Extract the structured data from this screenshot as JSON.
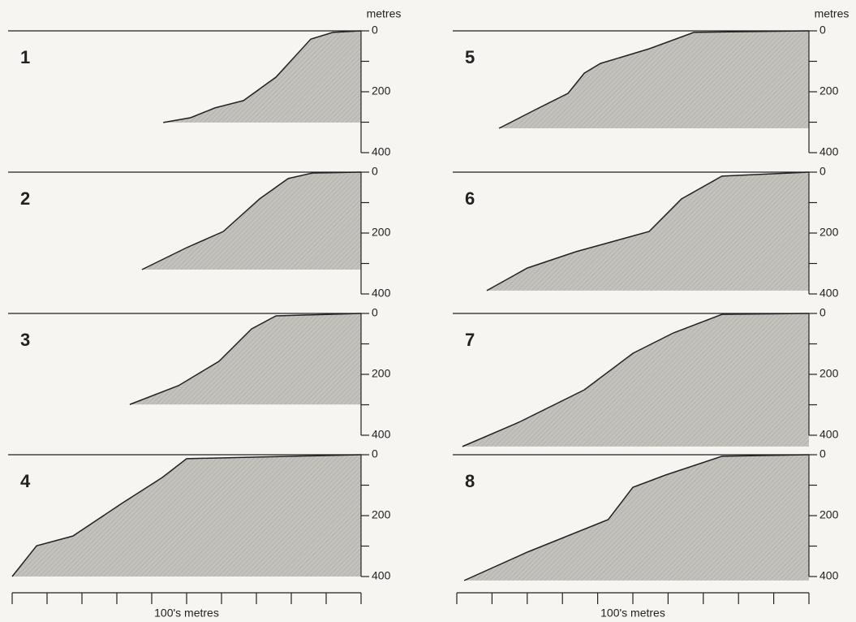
{
  "chart_data": [
    {
      "type": "area",
      "title": "1",
      "ylabel": "metres",
      "x": [
        4.33,
        5.12,
        5.81,
        6.63,
        7.56,
        8.56,
        9.19,
        10
      ],
      "values": [
        301,
        285,
        253,
        229,
        152,
        27,
        5,
        0
      ],
      "xlim": [
        0,
        10
      ],
      "ylim": [
        0,
        400
      ],
      "yticks": [
        0,
        200,
        400
      ],
      "yminorticks": [
        100,
        300
      ],
      "color": "#c4c2bc"
    },
    {
      "type": "area",
      "title": "2",
      "x": [
        3.72,
        5.0,
        6.05,
        7.09,
        7.91,
        8.6,
        10
      ],
      "values": [
        320,
        248,
        195,
        88,
        21,
        3,
        0
      ],
      "xlim": [
        0,
        10
      ],
      "ylim": [
        0,
        400
      ],
      "yticks": [
        0,
        200,
        400
      ],
      "yminorticks": [
        100,
        300
      ],
      "color": "#c4c2bc"
    },
    {
      "type": "area",
      "title": "3",
      "x": [
        3.37,
        4.77,
        5.93,
        6.86,
        7.56,
        10
      ],
      "values": [
        299,
        237,
        157,
        51,
        8,
        0
      ],
      "xlim": [
        0,
        10
      ],
      "ylim": [
        0,
        400
      ],
      "yticks": [
        0,
        200,
        400
      ],
      "yminorticks": [
        100,
        300
      ],
      "color": "#c4c2bc"
    },
    {
      "type": "area",
      "title": "4",
      "xlabel": "100's metres",
      "xticks": [
        0,
        1,
        2,
        3,
        4,
        5,
        6,
        7,
        8,
        9,
        10
      ],
      "x": [
        0,
        0.7,
        1.74,
        3.14,
        4.3,
        5.0,
        10
      ],
      "values": [
        400,
        299,
        267,
        160,
        75,
        13,
        0
      ],
      "xlim": [
        0,
        10
      ],
      "ylim": [
        0,
        400
      ],
      "yticks": [
        0,
        200,
        400
      ],
      "yminorticks": [
        100,
        300
      ],
      "color": "#c4c2bc"
    },
    {
      "type": "area",
      "title": "5",
      "ylabel": "metres",
      "x": [
        1.2,
        2.23,
        3.16,
        3.62,
        4.08,
        5.46,
        6.73,
        10
      ],
      "values": [
        320,
        259,
        205,
        139,
        107,
        59,
        5,
        0
      ],
      "xlim": [
        0,
        10
      ],
      "ylim": [
        0,
        400
      ],
      "yticks": [
        0,
        200,
        400
      ],
      "yminorticks": [
        100,
        300
      ],
      "color": "#c4c2bc"
    },
    {
      "type": "area",
      "title": "6",
      "x": [
        0.85,
        2.0,
        3.39,
        5.46,
        6.38,
        7.53,
        10
      ],
      "values": [
        389,
        315,
        261,
        195,
        88,
        13,
        0
      ],
      "xlim": [
        0,
        10
      ],
      "ylim": [
        0,
        400
      ],
      "yticks": [
        0,
        200,
        400
      ],
      "yminorticks": [
        100,
        300
      ],
      "color": "#c4c2bc"
    },
    {
      "type": "area",
      "title": "7",
      "x": [
        0.16,
        1.77,
        3.62,
        5.0,
        6.15,
        7.53,
        10
      ],
      "values": [
        437,
        357,
        251,
        131,
        64,
        3,
        0
      ],
      "xlim": [
        0,
        10
      ],
      "ylim": [
        0,
        400
      ],
      "yticks": [
        0,
        200,
        400
      ],
      "yminorticks": [
        100,
        300
      ],
      "color": "#c4c2bc"
    },
    {
      "type": "area",
      "title": "8",
      "xlabel": "100's metres",
      "xticks": [
        0,
        1,
        2,
        3,
        4,
        5,
        6,
        7,
        8,
        9,
        10
      ],
      "x": [
        0.21,
        2.0,
        4.3,
        5.0,
        5.92,
        7.53,
        10
      ],
      "values": [
        413,
        320,
        213,
        107,
        67,
        5,
        0
      ],
      "xlim": [
        0,
        10
      ],
      "ylim": [
        0,
        400
      ],
      "yticks": [
        0,
        200,
        400
      ],
      "yminorticks": [
        100,
        300
      ],
      "color": "#c4c2bc"
    }
  ]
}
